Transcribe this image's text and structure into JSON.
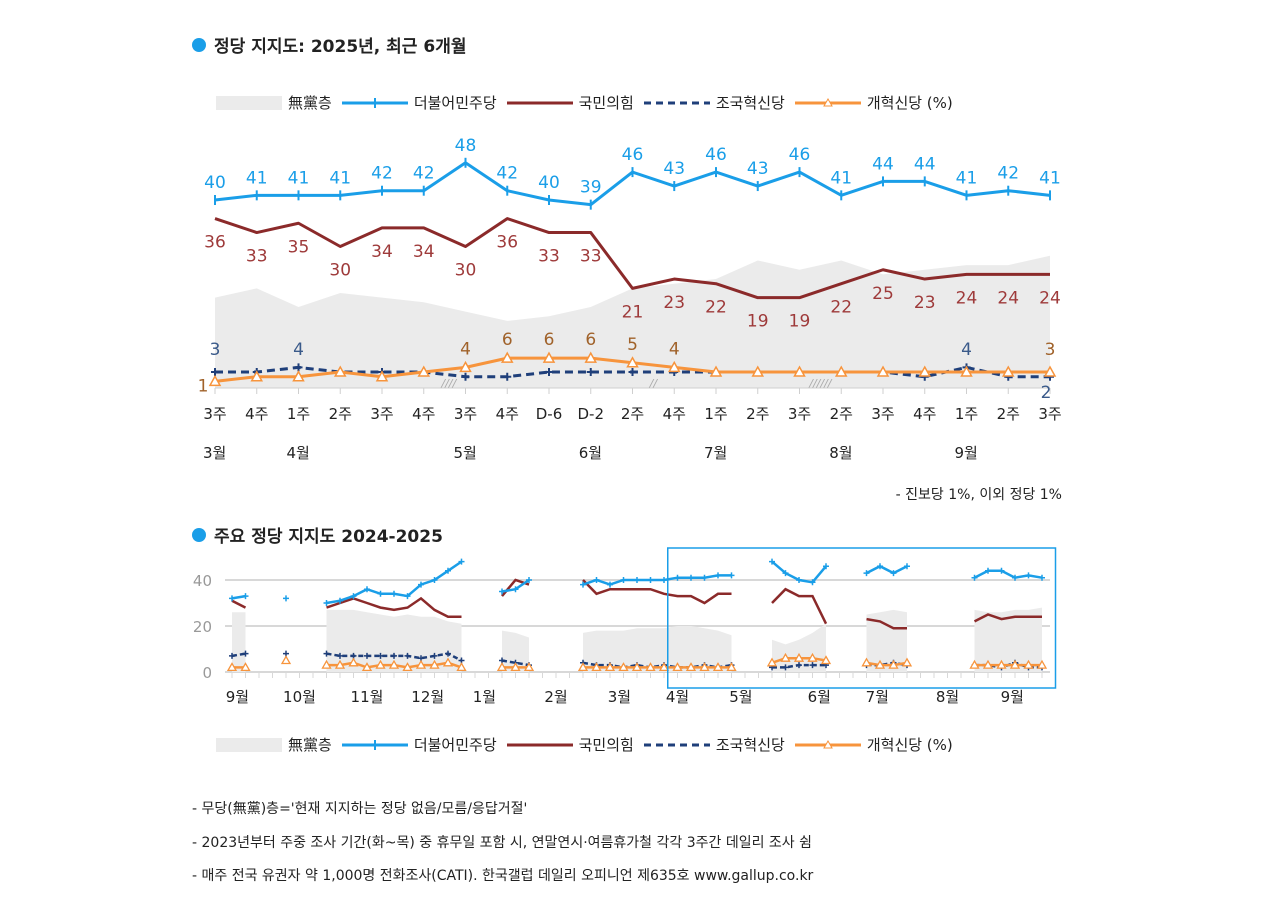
{
  "colors": {
    "dp": "#1a9ee8",
    "ppp": "#8b2a2a",
    "jk": "#1f3f7a",
    "gh": "#f7943c",
    "nonpartisan": "#ebebeb",
    "dp_label": "#1a9ee8",
    "ppp_label": "#9e3a3a",
    "jk_label": "#3a5a8a",
    "gh_label": "#a0622a",
    "highlight": "#1a9ee8"
  },
  "top": {
    "title": "정당 지지도: 2025년, 최근 6개월",
    "note": "- 진보당 1%, 이외 정당 1%"
  },
  "bottom": {
    "title": "주요 정당 지지도 2024-2025"
  },
  "legend": {
    "nonpartisan": "無黨층",
    "dp": "더불어민주당",
    "ppp": "국민의힘",
    "jk": "조국혁신당",
    "gh": "개혁신당 (%)"
  },
  "footnotes": [
    "- 무당(無黨)층='현재 지지하는 정당 없음/모름/응답거절'",
    "- 2023년부터 주중 조사 기간(화~목) 중 휴무일 포함 시, 연말연시·여름휴가철 각각 3주간 데일리 조사 쉼",
    "- 매주 전국 유권자 약 1,000명 전화조사(CATI). 한국갤럽 데일리 오피니언 제635호 www.gallup.co.kr"
  ],
  "chart_data": [
    {
      "type": "line",
      "title": "정당 지지도: 2025년, 최근 6개월",
      "unit": "%",
      "categories": [
        "3주",
        "4주",
        "1주",
        "2주",
        "3주",
        "4주",
        "3주",
        "4주",
        "D-6",
        "D-2",
        "2주",
        "4주",
        "1주",
        "2주",
        "3주",
        "2주",
        "3주",
        "4주",
        "1주",
        "2주",
        "3주"
      ],
      "months": [
        {
          "label": "3월",
          "at": 0
        },
        {
          "label": "4월",
          "at": 2
        },
        {
          "label": "5월",
          "at": 6
        },
        {
          "label": "6월",
          "at": 9
        },
        {
          "label": "7월",
          "at": 12
        },
        {
          "label": "8월",
          "at": 15
        },
        {
          "label": "9월",
          "at": 18
        }
      ],
      "series": [
        {
          "name": "無黨층",
          "type": "area",
          "values": [
            19,
            21,
            17,
            20,
            19,
            18,
            16,
            14,
            15,
            17,
            21,
            22,
            23,
            27,
            25,
            27,
            24,
            25,
            26,
            26,
            28
          ]
        },
        {
          "name": "더불어민주당",
          "values": [
            40,
            41,
            41,
            41,
            42,
            42,
            48,
            42,
            40,
            39,
            46,
            43,
            46,
            43,
            46,
            41,
            44,
            44,
            41,
            42,
            41
          ],
          "labels": "all"
        },
        {
          "name": "국민의힘",
          "values": [
            36,
            33,
            35,
            30,
            34,
            34,
            30,
            36,
            33,
            33,
            21,
            23,
            22,
            19,
            19,
            22,
            25,
            23,
            24,
            24,
            24
          ],
          "labels": "all"
        },
        {
          "name": "조국혁신당",
          "values": [
            3,
            3,
            4,
            3,
            3,
            3,
            2,
            2,
            3,
            3,
            3,
            3,
            3,
            3,
            3,
            3,
            3,
            2,
            4,
            2,
            2
          ],
          "labeled_points": [
            0,
            2,
            18,
            20
          ]
        },
        {
          "name": "개혁신당",
          "values": [
            1,
            2,
            2,
            3,
            2,
            3,
            4,
            6,
            6,
            6,
            5,
            4,
            3,
            3,
            3,
            3,
            3,
            3,
            3,
            3,
            3
          ],
          "labeled_points": [
            0,
            6,
            7,
            8,
            9,
            10,
            11,
            20
          ]
        }
      ]
    },
    {
      "type": "line",
      "title": "주요 정당 지지도 2024-2025",
      "unit": "%",
      "ylim": [
        0,
        50
      ],
      "yticks": [
        0,
        20,
        40
      ],
      "x_unit": "weekly survey sequence",
      "months": [
        {
          "label": "9월",
          "at": 0.4
        },
        {
          "label": "10월",
          "at": 5
        },
        {
          "label": "11월",
          "at": 10
        },
        {
          "label": "12월",
          "at": 14.5
        },
        {
          "label": "1월",
          "at": 18.7
        },
        {
          "label": "2월",
          "at": 24
        },
        {
          "label": "3월",
          "at": 28.7
        },
        {
          "label": "4월",
          "at": 33
        },
        {
          "label": "5월",
          "at": 37.7
        },
        {
          "label": "6월",
          "at": 43.5
        },
        {
          "label": "7월",
          "at": 47.8
        },
        {
          "label": "8월",
          "at": 53
        },
        {
          "label": "9월",
          "at": 57.8
        }
      ],
      "highlight_range": [
        32.5,
        61
      ],
      "segments": [
        {
          "start": 0,
          "nonpartisan": [
            26,
            26
          ],
          "dp": [
            32,
            33
          ],
          "ppp": [
            31,
            28
          ],
          "jk": [
            7,
            8
          ],
          "gh": [
            2,
            2
          ]
        },
        {
          "start": 4,
          "nonpartisan": null,
          "dp": [
            32
          ],
          "ppp": null,
          "jk": [
            8
          ],
          "gh": [
            5
          ]
        },
        {
          "start": 7,
          "nonpartisan": [
            27,
            27,
            27,
            26,
            25,
            24,
            25,
            24,
            24,
            22,
            21
          ],
          "dp": [
            30,
            31,
            33,
            36,
            34,
            34,
            33,
            38,
            40,
            44,
            48
          ],
          "ppp": [
            28,
            30,
            32,
            30,
            28,
            27,
            28,
            32,
            27,
            24,
            24
          ],
          "jk": [
            8,
            7,
            7,
            7,
            7,
            7,
            7,
            6,
            7,
            8,
            5
          ],
          "gh": [
            3,
            3,
            4,
            2,
            3,
            3,
            2,
            3,
            3,
            4,
            2
          ]
        },
        {
          "start": 20,
          "nonpartisan": [
            18,
            17,
            15
          ],
          "dp": [
            35,
            36,
            40
          ],
          "ppp": [
            33,
            40,
            38
          ],
          "jk": [
            5,
            4,
            3
          ],
          "gh": [
            2,
            2,
            2
          ]
        },
        {
          "start": 26,
          "nonpartisan": [
            17,
            18,
            18,
            18,
            19,
            19,
            19,
            20,
            20,
            19,
            18,
            16
          ],
          "dp": [
            38,
            40,
            38,
            40,
            40,
            40,
            40,
            41,
            41,
            41,
            42,
            42
          ],
          "ppp": [
            40,
            34,
            36,
            36,
            36,
            36,
            34,
            33,
            33,
            30,
            34,
            34
          ],
          "jk": [
            4,
            3,
            3,
            2,
            3,
            2,
            3,
            2,
            2,
            3,
            2,
            3
          ],
          "gh": [
            2,
            2,
            2,
            2,
            2,
            2,
            2,
            2,
            2,
            2,
            2,
            2
          ]
        },
        {
          "start": 40,
          "nonpartisan": [
            14,
            12,
            14,
            17,
            21
          ],
          "dp": [
            48,
            43,
            40,
            39,
            46
          ],
          "ppp": [
            30,
            36,
            33,
            33,
            21
          ],
          "jk": [
            2,
            2,
            3,
            3,
            3
          ],
          "gh": [
            4,
            6,
            6,
            6,
            5
          ]
        },
        {
          "start": 47,
          "nonpartisan": [
            25,
            26,
            27,
            26
          ],
          "dp": [
            43,
            46,
            43,
            46
          ],
          "ppp": [
            23,
            22,
            19,
            19
          ],
          "jk": [
            3,
            3,
            4,
            3
          ],
          "gh": [
            4,
            3,
            3,
            4
          ]
        },
        {
          "start": 55,
          "nonpartisan": [
            27,
            26,
            26,
            27,
            27,
            28
          ],
          "dp": [
            41,
            44,
            44,
            41,
            42,
            41
          ],
          "ppp": [
            22,
            25,
            23,
            24,
            24,
            24
          ],
          "jk": [
            3,
            3,
            2,
            4,
            2,
            2
          ],
          "gh": [
            3,
            3,
            3,
            3,
            3,
            3
          ]
        }
      ]
    }
  ]
}
